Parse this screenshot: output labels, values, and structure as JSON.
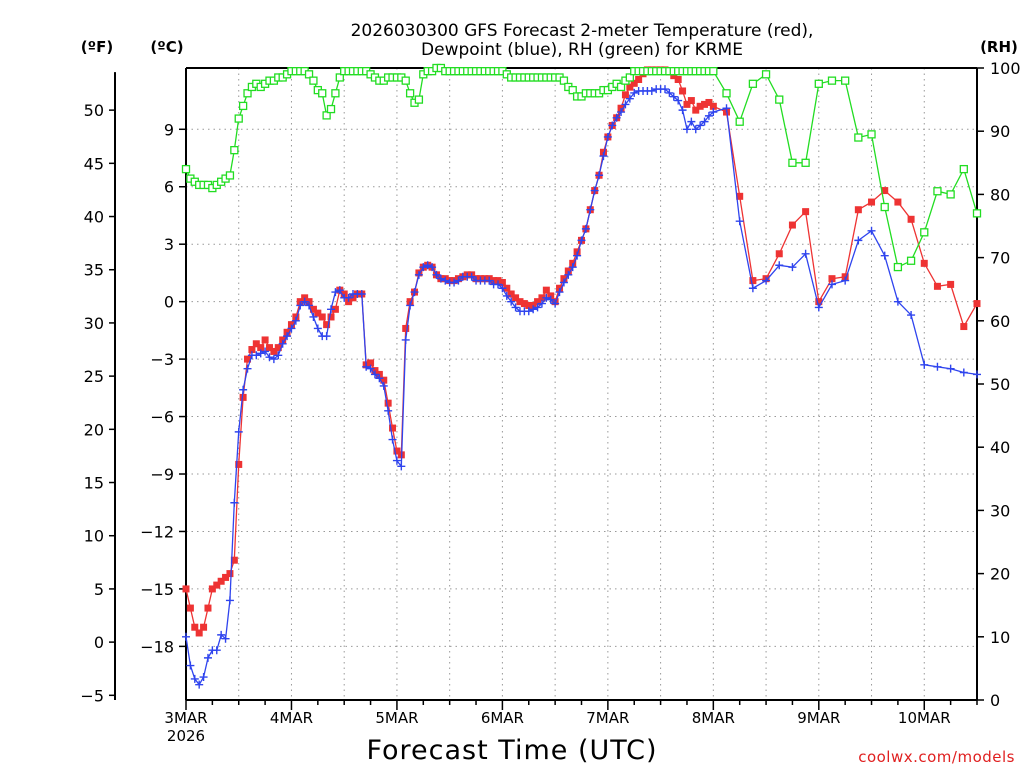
{
  "chart_data": {
    "type": "line",
    "title_line1": "2026030300 GFS Forecast 2-meter Temperature (red),",
    "title_line2": "Dewpoint (blue), RH (green) for KRME",
    "xlabel": "Forecast Time (UTC)",
    "credit": "coolwx.com/models",
    "units": {
      "fahrenheit": "(ºF)",
      "celsius": "(ºC)",
      "rh": "(RH)"
    },
    "x_axis": {
      "unit": "hours since 2026-03-03 00Z",
      "range": [
        0,
        180
      ],
      "ticks": [
        {
          "hour": 0,
          "label": "3MAR",
          "sublabel": "2026"
        },
        {
          "hour": 24,
          "label": "4MAR"
        },
        {
          "hour": 48,
          "label": "5MAR"
        },
        {
          "hour": 72,
          "label": "6MAR"
        },
        {
          "hour": 96,
          "label": "7MAR"
        },
        {
          "hour": 120,
          "label": "8MAR"
        },
        {
          "hour": 144,
          "label": "9MAR"
        },
        {
          "hour": 168,
          "label": "10MAR"
        }
      ]
    },
    "y_celsius": {
      "range": [
        -20.8,
        12.2
      ],
      "ticks": [
        "-18",
        "-15",
        "-12",
        "-9",
        "-6",
        "-3",
        "0",
        "3",
        "6",
        "9"
      ]
    },
    "y_fahrenheit": {
      "ticks": [
        "-5",
        "0",
        "5",
        "10",
        "15",
        "20",
        "25",
        "30",
        "35",
        "40",
        "45",
        "50"
      ]
    },
    "y_rh": {
      "range": [
        0,
        100
      ],
      "ticks": [
        "0",
        "10",
        "20",
        "30",
        "40",
        "50",
        "60",
        "70",
        "80",
        "90",
        "100"
      ]
    },
    "series": [
      {
        "name": "Temperature",
        "color": "#ee3333",
        "marker": "square",
        "x": [
          0,
          1,
          2,
          3,
          4,
          5,
          6,
          7,
          8,
          9,
          10,
          11,
          12,
          13,
          14,
          15,
          16,
          17,
          18,
          19,
          20,
          21,
          22,
          23,
          24,
          25,
          26,
          27,
          28,
          29,
          30,
          31,
          32,
          33,
          34,
          35,
          36,
          37,
          38,
          39,
          40,
          41,
          42,
          43,
          44,
          45,
          46,
          47,
          48,
          49,
          50,
          51,
          52,
          53,
          54,
          55,
          56,
          57,
          58,
          59,
          60,
          61,
          62,
          63,
          64,
          65,
          66,
          67,
          68,
          69,
          70,
          71,
          72,
          73,
          74,
          75,
          76,
          77,
          78,
          79,
          80,
          81,
          82,
          83,
          84,
          85,
          86,
          87,
          88,
          89,
          90,
          91,
          92,
          93,
          94,
          95,
          96,
          97,
          98,
          99,
          100,
          101,
          102,
          103,
          104,
          105,
          106,
          107,
          108,
          109,
          110,
          111,
          112,
          113,
          114,
          115,
          116,
          117,
          118,
          119,
          120,
          123,
          126,
          129,
          132,
          135,
          138,
          141,
          144,
          147,
          150,
          153,
          156,
          159,
          162,
          165,
          168,
          171,
          174,
          177,
          180
        ],
        "values": [
          -15,
          -16,
          -17,
          -17.3,
          -17,
          -16,
          -15,
          -14.8,
          -14.6,
          -14.4,
          -14.2,
          -13.5,
          -8.5,
          -5,
          -3,
          -2.5,
          -2.2,
          -2.4,
          -2,
          -2.4,
          -2.6,
          -2.4,
          -2,
          -1.6,
          -1.2,
          -0.8,
          0,
          0.2,
          0,
          -0.4,
          -0.6,
          -0.8,
          -1.2,
          -0.8,
          -0.4,
          0.6,
          0.4,
          0,
          0.2,
          0.4,
          0.4,
          -3.3,
          -3.2,
          -3.6,
          -3.8,
          -4.1,
          -5.3,
          -6.6,
          -7.8,
          -8,
          -1.4,
          0,
          0.5,
          1.5,
          1.8,
          1.9,
          1.8,
          1.4,
          1.2,
          1.2,
          1.1,
          1.1,
          1.2,
          1.3,
          1.4,
          1.4,
          1.2,
          1.2,
          1.2,
          1.2,
          1.1,
          1.1,
          1.0,
          0.7,
          0.4,
          0.2,
          0,
          -0.1,
          -0.2,
          -0.2,
          0,
          0.2,
          0.6,
          0.3,
          0,
          0.7,
          1.2,
          1.6,
          2.0,
          2.6,
          3.2,
          3.8,
          4.8,
          5.8,
          6.6,
          7.8,
          8.6,
          9.2,
          9.6,
          10.1,
          10.8,
          11.2,
          11.4,
          11.6,
          11.9,
          12.1,
          12.1,
          12.1,
          12.1,
          12.1,
          12.0,
          11.8,
          11.6,
          11.0,
          10.3,
          10.5,
          10.0,
          10.2,
          10.3,
          10.4,
          10.2,
          9.9,
          5.5,
          1.1,
          1.2,
          2.5,
          4.0,
          4.7,
          0,
          1.2,
          1.3,
          4.8,
          5.2,
          5.8,
          5.2,
          4.3,
          2,
          0.8,
          0.9,
          -1.3,
          -0.1
        ]
      },
      {
        "name": "Dewpoint",
        "color": "#2f44ee",
        "marker": "plus",
        "x": [
          0,
          1,
          2,
          3,
          4,
          5,
          6,
          7,
          8,
          9,
          10,
          11,
          12,
          13,
          14,
          15,
          16,
          17,
          18,
          19,
          20,
          21,
          22,
          23,
          24,
          25,
          26,
          27,
          28,
          29,
          30,
          31,
          32,
          33,
          34,
          35,
          36,
          37,
          38,
          39,
          40,
          41,
          42,
          43,
          44,
          45,
          46,
          47,
          48,
          49,
          50,
          51,
          52,
          53,
          54,
          55,
          56,
          57,
          58,
          59,
          60,
          61,
          62,
          63,
          64,
          65,
          66,
          67,
          68,
          69,
          70,
          71,
          72,
          73,
          74,
          75,
          76,
          77,
          78,
          79,
          80,
          81,
          82,
          83,
          84,
          85,
          86,
          87,
          88,
          89,
          90,
          91,
          92,
          93,
          94,
          95,
          96,
          97,
          98,
          99,
          100,
          101,
          102,
          103,
          104,
          105,
          106,
          107,
          108,
          109,
          110,
          111,
          112,
          113,
          114,
          115,
          116,
          117,
          118,
          119,
          120,
          123,
          126,
          129,
          132,
          135,
          138,
          141,
          144,
          147,
          150,
          153,
          156,
          159,
          162,
          165,
          168,
          171,
          174,
          177,
          180
        ],
        "values": [
          -17.5,
          -19,
          -19.7,
          -20,
          -19.6,
          -18.6,
          -18.2,
          -18.2,
          -17.4,
          -17.6,
          -15.6,
          -10.5,
          -6.8,
          -4.6,
          -3.5,
          -2.8,
          -2.8,
          -2.7,
          -2.6,
          -2.9,
          -3,
          -2.8,
          -2.2,
          -1.8,
          -1.4,
          -1.0,
          -0.2,
          0,
          -0.2,
          -0.8,
          -1.4,
          -1.8,
          -1.8,
          -0.4,
          0.5,
          0.6,
          0.2,
          0.2,
          0.4,
          0.4,
          0.4,
          -3.4,
          -3.5,
          -3.8,
          -4.0,
          -4.4,
          -5.7,
          -7.2,
          -8.3,
          -8.6,
          -2,
          -0.2,
          0.5,
          1.4,
          1.8,
          1.9,
          1.8,
          1.4,
          1.2,
          1.1,
          1.0,
          1.0,
          1.1,
          1.3,
          1.3,
          1.3,
          1.1,
          1.1,
          1.1,
          1.1,
          0.9,
          0.9,
          0.7,
          0.3,
          0,
          -0.3,
          -0.5,
          -0.5,
          -0.5,
          -0.4,
          -0.3,
          -0.1,
          0.2,
          0.1,
          -0.1,
          0.5,
          1.0,
          1.4,
          1.8,
          2.4,
          3.2,
          3.8,
          4.8,
          5.8,
          6.6,
          7.6,
          8.6,
          9.2,
          9.6,
          9.9,
          10.3,
          10.6,
          10.9,
          11.0,
          11.0,
          11.0,
          11.0,
          11.1,
          11.1,
          11.1,
          10.9,
          10.7,
          10.5,
          10.0,
          9.0,
          9.4,
          9.0,
          9.2,
          9.4,
          9.7,
          9.9,
          10.1,
          4.2,
          0.7,
          1.1,
          1.9,
          1.8,
          2.5,
          -0.3,
          0.9,
          1.1,
          3.2,
          3.7,
          2.4,
          0,
          -0.7,
          -3.3,
          -3.4,
          -3.5,
          -3.7,
          -3.8
        ]
      },
      {
        "name": "RH",
        "color": "#22dd22",
        "marker": "open-square",
        "axis": "rh",
        "x": [
          0,
          1,
          2,
          3,
          4,
          5,
          6,
          7,
          8,
          9,
          10,
          11,
          12,
          13,
          14,
          15,
          16,
          17,
          18,
          19,
          20,
          21,
          22,
          23,
          24,
          25,
          26,
          27,
          28,
          29,
          30,
          31,
          32,
          33,
          34,
          35,
          36,
          37,
          38,
          39,
          40,
          41,
          42,
          43,
          44,
          45,
          46,
          47,
          48,
          49,
          50,
          51,
          52,
          53,
          54,
          55,
          56,
          57,
          58,
          59,
          60,
          61,
          62,
          63,
          64,
          65,
          66,
          67,
          68,
          69,
          70,
          71,
          72,
          73,
          74,
          75,
          76,
          77,
          78,
          79,
          80,
          81,
          82,
          83,
          84,
          85,
          86,
          87,
          88,
          89,
          90,
          91,
          92,
          93,
          94,
          95,
          96,
          97,
          98,
          99,
          100,
          101,
          102,
          103,
          104,
          105,
          106,
          107,
          108,
          109,
          110,
          111,
          112,
          113,
          114,
          115,
          116,
          117,
          118,
          119,
          120,
          123,
          126,
          129,
          132,
          135,
          138,
          141,
          144,
          147,
          150,
          153,
          156,
          159,
          162,
          165,
          168,
          171,
          174,
          177,
          180
        ],
        "values": [
          84,
          82.5,
          82,
          81.5,
          81.5,
          81.5,
          81,
          81.5,
          82,
          82.5,
          83,
          87,
          92,
          94,
          96,
          97,
          97.5,
          97,
          97.5,
          98,
          98,
          98.5,
          98.5,
          99,
          99.5,
          99.5,
          99.5,
          99.5,
          99,
          98,
          96.5,
          96,
          92.5,
          93.5,
          96,
          98.5,
          99.5,
          99.5,
          99.5,
          99.5,
          99.5,
          99.5,
          99,
          98.5,
          98,
          98,
          98.5,
          98.5,
          98.5,
          98.5,
          98,
          96,
          94.5,
          95,
          99,
          99.5,
          99.5,
          100,
          100,
          99.5,
          99.5,
          99.5,
          99.5,
          99.5,
          99.5,
          99.5,
          99.5,
          99.5,
          99.5,
          99.5,
          99.5,
          99.5,
          99.5,
          99,
          98.5,
          98.5,
          98.5,
          98.5,
          98.5,
          98.5,
          98.5,
          98.5,
          98.5,
          98.5,
          98.5,
          98.5,
          98,
          97,
          96.5,
          95.5,
          95.5,
          96,
          96,
          96,
          96,
          96.5,
          96.5,
          97,
          97.5,
          97,
          98,
          98.5,
          99.5,
          99.5,
          99.5,
          99.5,
          99.5,
          99.5,
          99.5,
          99.5,
          99.5,
          99.5,
          99.5,
          99.5,
          99.5,
          99.5,
          99.5,
          99.5,
          99.5,
          99.5,
          99.5,
          96,
          91.5,
          97.5,
          99,
          95,
          85,
          85,
          97.5,
          98,
          98,
          89,
          89.5,
          78,
          68.5,
          69.5,
          74,
          80.5,
          80,
          84,
          77
        ]
      }
    ]
  }
}
